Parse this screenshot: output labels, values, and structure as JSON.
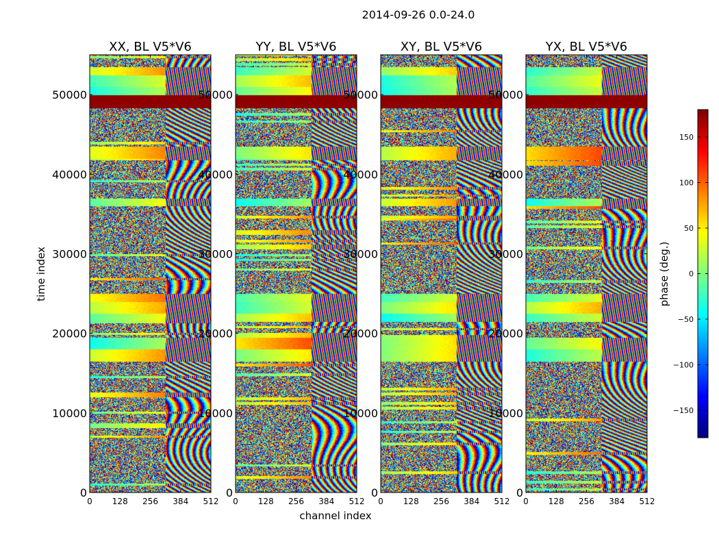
{
  "figure": {
    "suptitle": "2014-09-26 0.0-24.0"
  },
  "chart_data": {
    "type": "heatmap",
    "panels": [
      {
        "title": "XX, BL V5*V6"
      },
      {
        "title": "YY, BL V5*V6"
      },
      {
        "title": "XY, BL V5*V6"
      },
      {
        "title": "YX, BL V5*V6"
      }
    ],
    "xlabel": "channel index",
    "ylabel": "time index",
    "xlim": [
      0,
      512
    ],
    "ylim": [
      0,
      55000
    ],
    "x_ticks": [
      0,
      128,
      256,
      384,
      512
    ],
    "y_ticks": [
      0,
      10000,
      20000,
      30000,
      40000,
      50000
    ],
    "colorbar": {
      "label": "phase (deg.)",
      "range": [
        -180,
        180
      ],
      "ticks": [
        150,
        100,
        50,
        0,
        -50,
        -100,
        -150
      ],
      "tick_labels": [
        "150",
        "100",
        "50",
        "0",
        "−50",
        "−100",
        "−150"
      ],
      "colormap": "jet"
    },
    "colors": {
      "saturated_band": "#800000",
      "jet": [
        "#00007f",
        "#0000ff",
        "#007fff",
        "#00ffff",
        "#7fff7f",
        "#ffff00",
        "#ff7f00",
        "#ff0000",
        "#7f0000"
      ]
    },
    "features": {
      "saturated_band_time": [
        48300,
        50000
      ],
      "smooth_blocks_time": [
        [
          21500,
          25000
        ],
        [
          16500,
          19500
        ],
        [
          41800,
          43500
        ],
        [
          36000,
          37000
        ],
        [
          49000,
          53500
        ]
      ],
      "fringe_channel_start": 320
    }
  }
}
